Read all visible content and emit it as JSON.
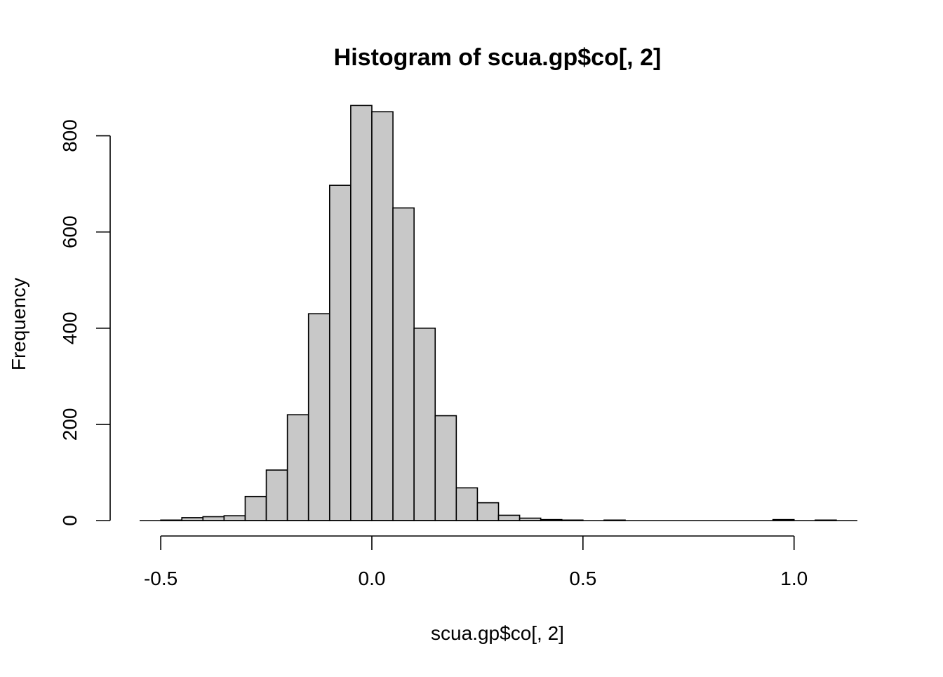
{
  "chart_data": {
    "type": "bar",
    "subtype": "histogram",
    "title": "Histogram of scua.gp$co[, 2]",
    "xlabel": "scua.gp$co[, 2]",
    "ylabel": "Frequency",
    "xlim": [
      -0.55,
      1.15
    ],
    "ylim": [
      0,
      900
    ],
    "x_ticks": [
      -0.5,
      0.0,
      0.5,
      1.0
    ],
    "x_tick_labels": [
      "-0.5",
      "0.0",
      "0.5",
      "1.0"
    ],
    "y_ticks": [
      0,
      200,
      400,
      600,
      800
    ],
    "y_tick_labels": [
      "0",
      "200",
      "400",
      "600",
      "800"
    ],
    "bin_width": 0.05,
    "bins": [
      {
        "start": -0.55,
        "end": -0.5,
        "count": 0
      },
      {
        "start": -0.5,
        "end": -0.45,
        "count": 1
      },
      {
        "start": -0.45,
        "end": -0.4,
        "count": 6
      },
      {
        "start": -0.4,
        "end": -0.35,
        "count": 8
      },
      {
        "start": -0.35,
        "end": -0.3,
        "count": 10
      },
      {
        "start": -0.3,
        "end": -0.25,
        "count": 50
      },
      {
        "start": -0.25,
        "end": -0.2,
        "count": 105
      },
      {
        "start": -0.2,
        "end": -0.15,
        "count": 220
      },
      {
        "start": -0.15,
        "end": -0.1,
        "count": 430
      },
      {
        "start": -0.1,
        "end": -0.05,
        "count": 697
      },
      {
        "start": -0.05,
        "end": 0.0,
        "count": 863
      },
      {
        "start": 0.0,
        "end": 0.05,
        "count": 850
      },
      {
        "start": 0.05,
        "end": 0.1,
        "count": 650
      },
      {
        "start": 0.1,
        "end": 0.15,
        "count": 400
      },
      {
        "start": 0.15,
        "end": 0.2,
        "count": 218
      },
      {
        "start": 0.2,
        "end": 0.25,
        "count": 68
      },
      {
        "start": 0.25,
        "end": 0.3,
        "count": 37
      },
      {
        "start": 0.3,
        "end": 0.35,
        "count": 11
      },
      {
        "start": 0.35,
        "end": 0.4,
        "count": 5
      },
      {
        "start": 0.4,
        "end": 0.45,
        "count": 2
      },
      {
        "start": 0.45,
        "end": 0.5,
        "count": 1
      },
      {
        "start": 0.5,
        "end": 0.55,
        "count": 0
      },
      {
        "start": 0.55,
        "end": 0.6,
        "count": 1
      },
      {
        "start": 0.6,
        "end": 0.65,
        "count": 0
      },
      {
        "start": 0.65,
        "end": 0.7,
        "count": 0
      },
      {
        "start": 0.7,
        "end": 0.75,
        "count": 0
      },
      {
        "start": 0.75,
        "end": 0.8,
        "count": 0
      },
      {
        "start": 0.8,
        "end": 0.85,
        "count": 0
      },
      {
        "start": 0.85,
        "end": 0.9,
        "count": 0
      },
      {
        "start": 0.9,
        "end": 0.95,
        "count": 0
      },
      {
        "start": 0.95,
        "end": 1.0,
        "count": 2
      },
      {
        "start": 1.0,
        "end": 1.05,
        "count": 0
      },
      {
        "start": 1.05,
        "end": 1.1,
        "count": 1
      },
      {
        "start": 1.1,
        "end": 1.15,
        "count": 0
      }
    ],
    "grid": false,
    "legend": "none",
    "colors": {
      "bar_fill": "#c8c8c8",
      "bar_stroke": "#000000",
      "axis": "#000000",
      "background": "#ffffff"
    }
  }
}
